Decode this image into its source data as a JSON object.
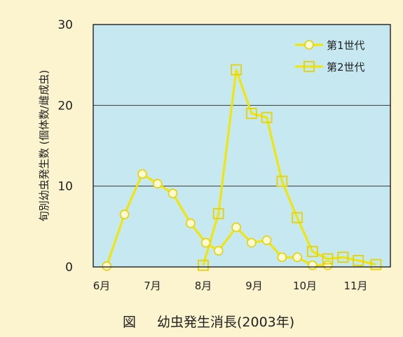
{
  "chart_data": {
    "type": "line",
    "title": "",
    "caption_label": "図",
    "caption_text": "幼虫発生消長(2003年)",
    "ylabel": "旬別幼虫発生数 (個体数/雌成虫)",
    "xlabel": "",
    "ylim": [
      0,
      30
    ],
    "yticks": [
      0,
      10,
      20,
      30
    ],
    "xticks": [
      "6月",
      "7月",
      "8月",
      "9月",
      "10月",
      "11月"
    ],
    "x_start_month": 6,
    "grid": "horizontal",
    "legend_position": "top-right",
    "series": [
      {
        "name": "第1世代",
        "marker": "circle",
        "color": "#f2e600",
        "points": [
          [
            6.1,
            0.1
          ],
          [
            6.45,
            6.5
          ],
          [
            6.8,
            11.5
          ],
          [
            7.1,
            10.3
          ],
          [
            7.4,
            9.1
          ],
          [
            7.75,
            5.4
          ],
          [
            8.05,
            3.0
          ],
          [
            8.3,
            2.0
          ],
          [
            8.65,
            4.9
          ],
          [
            8.95,
            3.0
          ],
          [
            9.25,
            3.3
          ],
          [
            9.55,
            1.2
          ],
          [
            9.85,
            1.2
          ],
          [
            10.15,
            0.2
          ],
          [
            10.45,
            0.2
          ]
        ]
      },
      {
        "name": "第2世代",
        "marker": "square",
        "color": "#f2e600",
        "points": [
          [
            8.0,
            0.2
          ],
          [
            8.3,
            6.6
          ],
          [
            8.65,
            24.4
          ],
          [
            8.95,
            19.0
          ],
          [
            9.25,
            18.5
          ],
          [
            9.55,
            10.6
          ],
          [
            9.85,
            6.1
          ],
          [
            10.15,
            1.9
          ],
          [
            10.45,
            1.0
          ],
          [
            10.75,
            1.2
          ],
          [
            11.05,
            0.8
          ],
          [
            11.4,
            0.3
          ]
        ]
      }
    ]
  },
  "colors": {
    "plot_background": "#c6e8f0",
    "page_background": "#fbf4cf",
    "series_line": "#f2e600",
    "marker_fill": "#fff9d6",
    "marker_edge": "#e8d200"
  }
}
